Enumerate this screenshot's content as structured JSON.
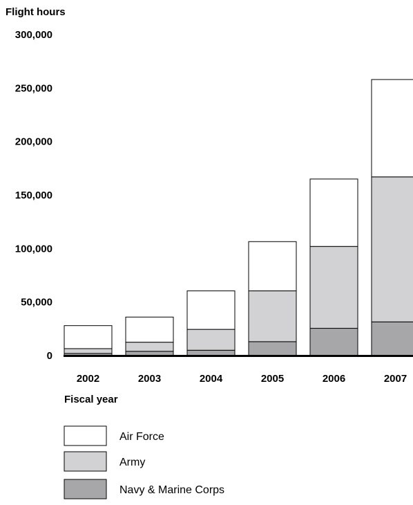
{
  "chart_data": {
    "type": "bar",
    "stacked": true,
    "title": "",
    "ylabel": "Flight hours",
    "xlabel": "Fiscal year",
    "categories": [
      "2002",
      "2003",
      "2004",
      "2005",
      "2006",
      "2007"
    ],
    "ylim": [
      0,
      300000
    ],
    "yticks": [
      0,
      50000,
      100000,
      150000,
      200000,
      250000,
      300000
    ],
    "ytick_labels": [
      "0",
      "50,000",
      "100,000",
      "150,000",
      "200,000",
      "250,000",
      "300,000"
    ],
    "grid": false,
    "legend_position": "bottom-left",
    "series": [
      {
        "name": "Navy & Marine Corps",
        "color": "#a7a7a9",
        "values": [
          2000,
          4000,
          5000,
          13000,
          25500,
          31500
        ]
      },
      {
        "name": "Army",
        "color": "#d2d2d4",
        "values": [
          4500,
          8500,
          19500,
          47500,
          76500,
          135500
        ]
      },
      {
        "name": "Air Force",
        "color": "#ffffff",
        "values": [
          21500,
          23500,
          36000,
          46000,
          63000,
          91000
        ]
      }
    ],
    "legend_order": [
      "Air Force",
      "Army",
      "Navy & Marine Corps"
    ]
  }
}
